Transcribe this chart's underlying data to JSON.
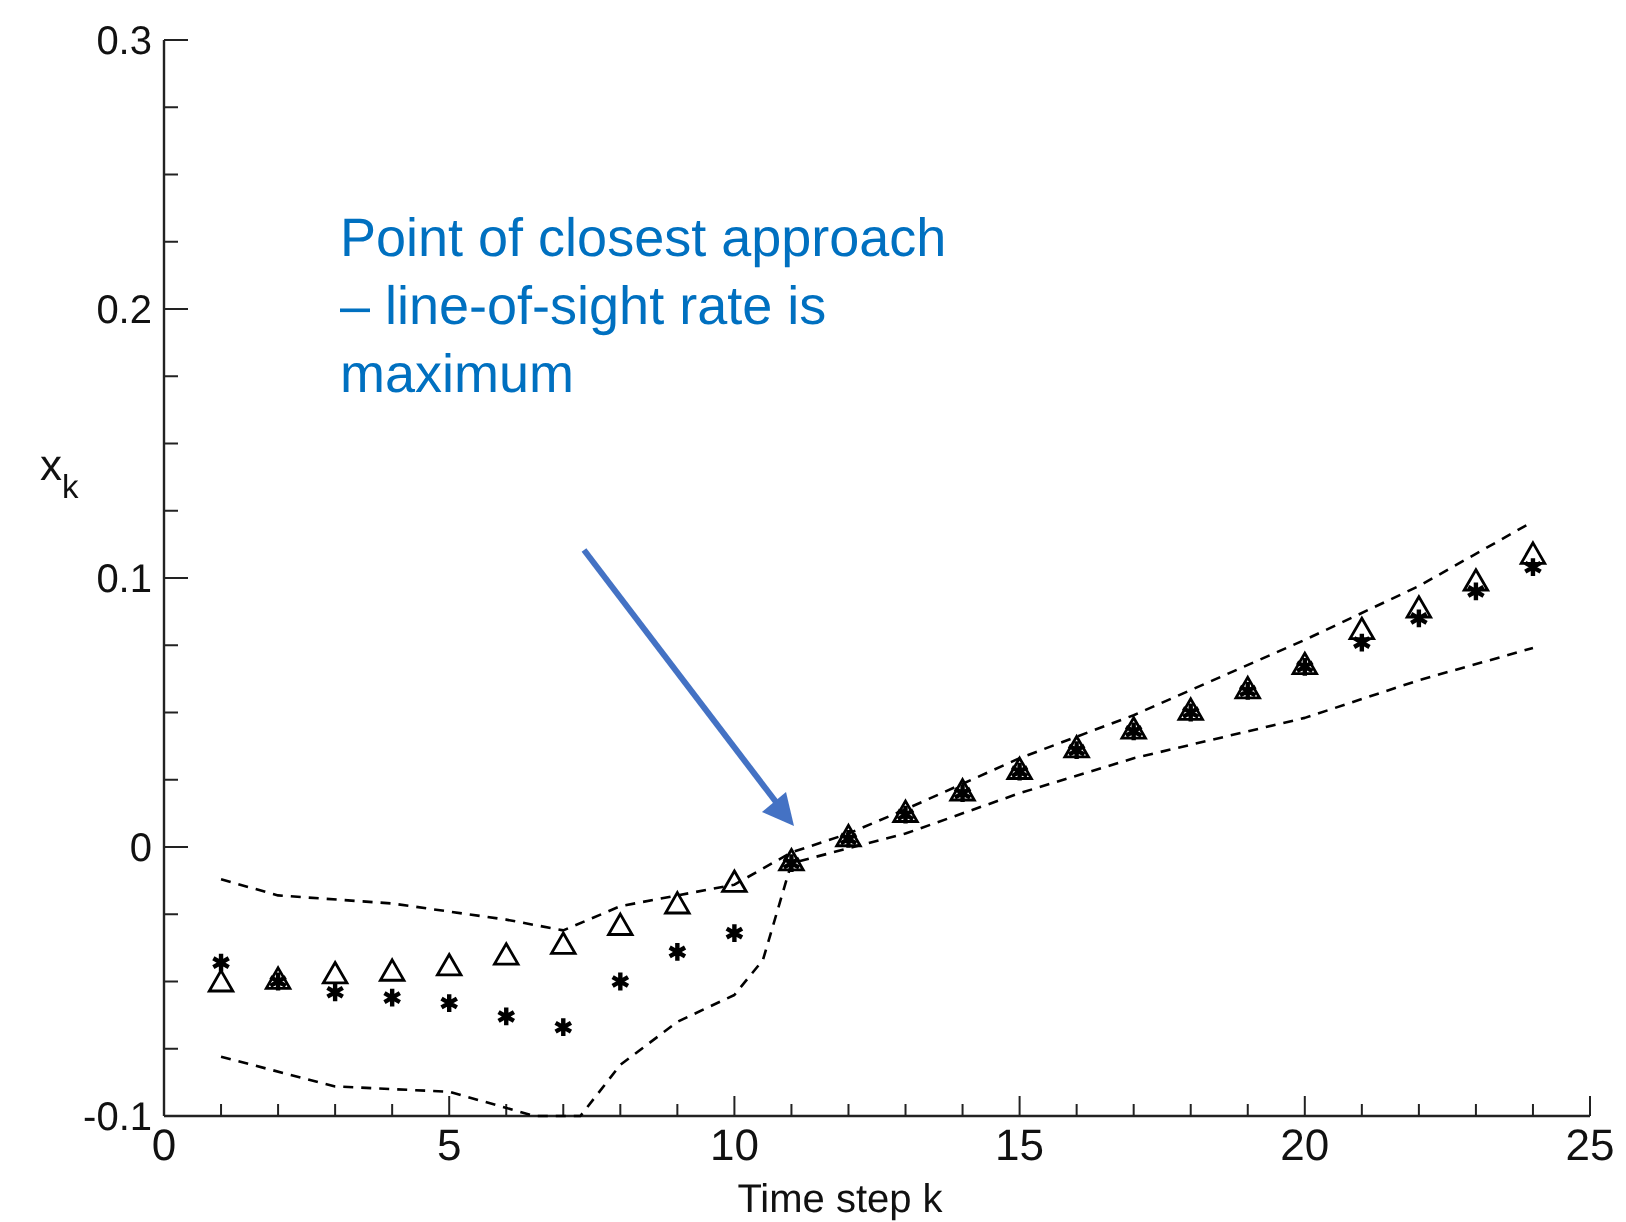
{
  "chart_data": {
    "type": "scatter",
    "xlabel": "Time step k",
    "ylabel": "x$_{k}$",
    "xlim": [
      0,
      25
    ],
    "ylim": [
      -0.1,
      0.3
    ],
    "xticks": [
      0,
      {
        "value": 1,
        "label": null
      },
      {
        "value": 2,
        "label": null
      },
      {
        "value": 3,
        "label": null
      },
      {
        "value": 4,
        "label": null
      },
      5,
      {
        "value": 6,
        "label": null
      },
      {
        "value": 7,
        "label": null
      },
      {
        "value": 8,
        "label": null
      },
      {
        "value": 9,
        "label": null
      },
      10,
      {
        "value": 11,
        "label": null
      },
      {
        "value": 12,
        "label": null
      },
      {
        "value": 13,
        "label": null
      },
      {
        "value": 14,
        "label": null
      },
      15,
      {
        "value": 16,
        "label": null
      },
      {
        "value": 17,
        "label": null
      },
      {
        "value": 18,
        "label": null
      },
      {
        "value": 19,
        "label": null
      },
      20,
      {
        "value": 21,
        "label": null
      },
      {
        "value": 22,
        "label": null
      },
      {
        "value": 23,
        "label": null
      },
      {
        "value": 24,
        "label": null
      },
      25
    ],
    "yticks": [
      -0.1,
      {
        "value": -0.075,
        "label": null
      },
      {
        "value": -0.05,
        "label": null
      },
      {
        "value": -0.025,
        "label": null
      },
      0,
      {
        "value": 0.025,
        "label": null
      },
      {
        "value": 0.05,
        "label": null
      },
      {
        "value": 0.075,
        "label": null
      },
      0.1,
      {
        "value": 0.125,
        "label": null
      },
      {
        "value": 0.15,
        "label": null
      },
      {
        "value": 0.175,
        "label": null
      },
      0.2,
      {
        "value": 0.225,
        "label": null
      },
      {
        "value": 0.25,
        "label": null
      },
      {
        "value": 0.275,
        "label": null
      },
      0.3
    ],
    "grid": false,
    "series": [
      {
        "marker": "triangle",
        "color": "#000000",
        "x": [
          1,
          2,
          3,
          4,
          5,
          6,
          7,
          8,
          9,
          10,
          11,
          12,
          13,
          14,
          15,
          16,
          17,
          18,
          19,
          20,
          21,
          22,
          23,
          24
        ],
        "values": [
          -0.051,
          -0.05,
          -0.048,
          -0.047,
          -0.045,
          -0.041,
          -0.037,
          -0.03,
          -0.022,
          -0.014,
          -0.006,
          0.003,
          0.012,
          0.02,
          0.028,
          0.036,
          0.043,
          0.05,
          0.058,
          0.067,
          0.08,
          0.088,
          0.098,
          0.108
        ]
      },
      {
        "marker": "cross",
        "color": "#000000",
        "x": [
          1,
          2,
          3,
          4,
          5,
          6,
          7,
          8,
          9,
          10,
          11,
          12,
          13,
          14,
          15,
          16,
          17,
          18,
          19,
          20,
          21,
          22,
          23,
          24
        ],
        "values": [
          -0.043,
          -0.05,
          -0.054,
          -0.056,
          -0.058,
          -0.063,
          -0.067,
          -0.05,
          -0.039,
          -0.032,
          -0.006,
          0.003,
          0.012,
          0.02,
          0.028,
          0.036,
          0.043,
          0.05,
          0.058,
          0.067,
          0.076,
          0.085,
          0.095,
          0.104
        ]
      },
      {
        "type": "line",
        "marker": "none",
        "line_style": "dashed",
        "color": "#000000",
        "x": [
          1,
          2,
          4,
          6,
          7,
          8,
          10,
          11,
          12,
          13,
          15,
          17,
          20,
          22,
          24
        ],
        "values": [
          -0.012,
          -0.018,
          -0.021,
          -0.027,
          -0.031,
          -0.022,
          -0.014,
          -0.002,
          0.005,
          0.014,
          0.033,
          0.049,
          0.077,
          0.097,
          0.121
        ]
      },
      {
        "type": "line",
        "marker": "none",
        "line_style": "dashed",
        "color": "#000000",
        "x": [
          1,
          3,
          5,
          6.5,
          7.3,
          8,
          9,
          10,
          10.5,
          11,
          13,
          15,
          17,
          20,
          22,
          24
        ],
        "values": [
          -0.078,
          -0.089,
          -0.091,
          -0.1,
          -0.1,
          -0.081,
          -0.065,
          -0.055,
          -0.042,
          -0.006,
          0.005,
          0.02,
          0.033,
          0.048,
          0.062,
          0.074
        ]
      }
    ],
    "annotations": [
      "Point of closest approach – line-of-sight rate is maximum"
    ]
  }
}
